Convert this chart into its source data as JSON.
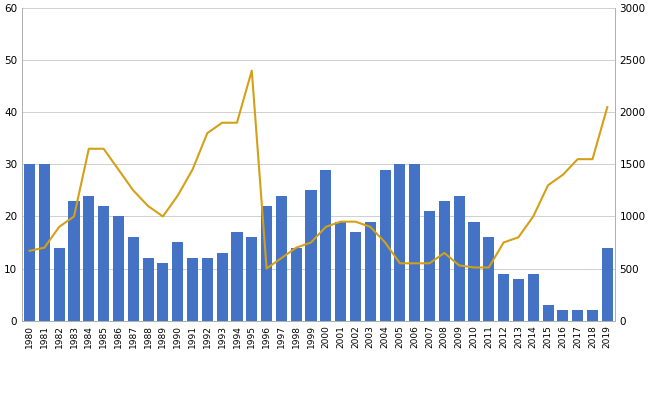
{
  "years": [
    1980,
    1981,
    1982,
    1983,
    1984,
    1985,
    1986,
    1987,
    1988,
    1989,
    1990,
    1991,
    1992,
    1993,
    1994,
    1995,
    1996,
    1997,
    1998,
    1999,
    2000,
    2001,
    2002,
    2003,
    2004,
    2005,
    2006,
    2007,
    2008,
    2009,
    2010,
    2011,
    2012,
    2013,
    2014,
    2015,
    2016,
    2017,
    2018,
    2019
  ],
  "wolves": [
    30,
    30,
    14,
    23,
    24,
    22,
    20,
    16,
    12,
    11,
    15,
    12,
    12,
    13,
    17,
    16,
    22,
    24,
    14,
    25,
    29,
    19,
    17,
    19,
    29,
    30,
    30,
    21,
    23,
    24,
    19,
    16,
    9,
    8,
    9,
    3,
    2,
    2,
    2,
    14
  ],
  "moose": [
    670,
    700,
    900,
    1000,
    1650,
    1650,
    1450,
    1250,
    1100,
    1000,
    1200,
    1450,
    1800,
    1900,
    1900,
    2400,
    500,
    600,
    700,
    750,
    900,
    950,
    950,
    900,
    750,
    550,
    550,
    550,
    650,
    530,
    510,
    510,
    750,
    800,
    1000,
    1300,
    1400,
    1550,
    1550,
    2050
  ],
  "bar_color": "#4472c4",
  "line_color": "#d4a017",
  "ylim_left": [
    0,
    60
  ],
  "ylim_right": [
    0,
    3000
  ],
  "yticks_left": [
    0,
    10,
    20,
    30,
    40,
    50,
    60
  ],
  "yticks_right": [
    0,
    500,
    1000,
    1500,
    2000,
    2500,
    3000
  ],
  "background_color": "#ffffff",
  "grid_color": "#c8c8c8",
  "spine_color": "#aaaaaa"
}
